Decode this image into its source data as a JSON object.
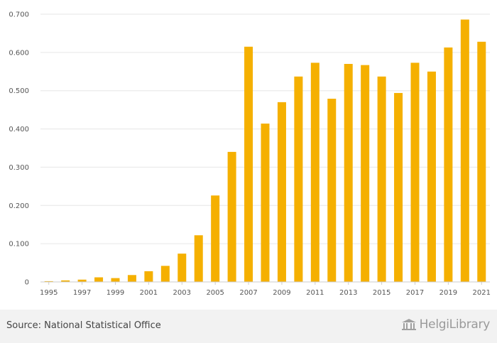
{
  "chart_data": {
    "type": "bar",
    "title": "",
    "xlabel": "",
    "ylabel": "",
    "categories": [
      "1995",
      "1996",
      "1997",
      "1998",
      "1999",
      "2000",
      "2001",
      "2002",
      "2003",
      "2004",
      "2005",
      "2006",
      "2007",
      "2008",
      "2009",
      "2010",
      "2011",
      "2012",
      "2013",
      "2014",
      "2015",
      "2016",
      "2017",
      "2018",
      "2019",
      "2020",
      "2021"
    ],
    "values": [
      0.002,
      0.004,
      0.006,
      0.012,
      0.01,
      0.018,
      0.028,
      0.042,
      0.074,
      0.122,
      0.226,
      0.34,
      0.615,
      0.414,
      0.47,
      0.537,
      0.573,
      0.479,
      0.57,
      0.567,
      0.537,
      0.494,
      0.573,
      0.55,
      0.613,
      0.686,
      0.628
    ],
    "x_tick_labels": [
      "1995",
      "1997",
      "1999",
      "2001",
      "2003",
      "2005",
      "2007",
      "2009",
      "2011",
      "2013",
      "2015",
      "2017",
      "2019",
      "2021"
    ],
    "y_tick_labels": [
      "0",
      "0.100",
      "0.200",
      "0.300",
      "0.400",
      "0.500",
      "0.600",
      "0.700"
    ],
    "ylim": [
      0,
      0.7
    ],
    "grid": true,
    "bar_color": "#f5b000"
  },
  "footer": {
    "source": "Source: National Statistical Office",
    "brand": "HelgiLibrary",
    "brand_icon": "library-building-icon"
  }
}
